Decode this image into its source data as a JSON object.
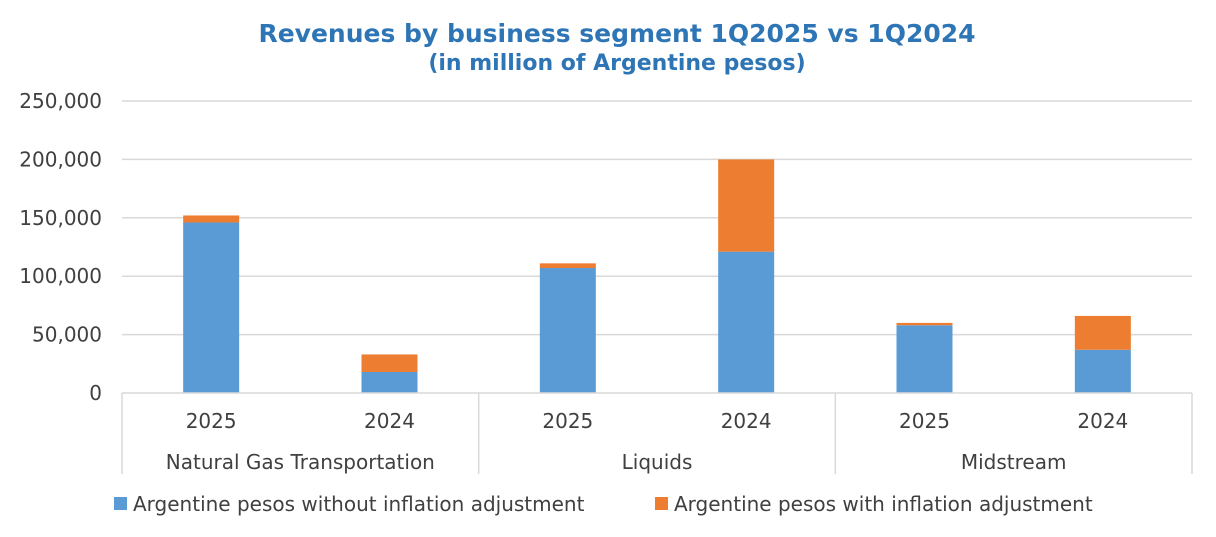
{
  "chart_data": {
    "type": "bar",
    "stacked": true,
    "title": "Revenues by business segment 1Q2025 vs 1Q2024",
    "subtitle": "(in million of Argentine pesos)",
    "xlabel": "",
    "ylabel": "",
    "ylim": [
      0,
      250000
    ],
    "yticks": [
      "0",
      "50,000",
      "100,000",
      "150,000",
      "200,000",
      "250,000"
    ],
    "ytick_values": [
      0,
      50000,
      100000,
      150000,
      200000,
      250000
    ],
    "grid": true,
    "legend_position": "bottom",
    "groups": [
      {
        "label": "Natural Gas Transportation",
        "categories": [
          "2025",
          "2024"
        ]
      },
      {
        "label": "Liquids",
        "categories": [
          "2025",
          "2024"
        ]
      },
      {
        "label": "Midstream",
        "categories": [
          "2025",
          "2024"
        ]
      }
    ],
    "series": [
      {
        "name": "Argentine pesos without inflation adjustment",
        "color": "#5B9BD5",
        "values": [
          146000,
          18000,
          107000,
          121000,
          58000,
          37000
        ]
      },
      {
        "name": "Argentine pesos with inflation adjustment",
        "color": "#ED7D31",
        "values": [
          6000,
          15000,
          4000,
          79000,
          2000,
          29000
        ]
      }
    ]
  }
}
